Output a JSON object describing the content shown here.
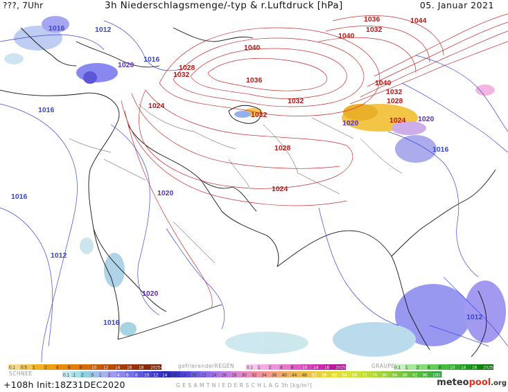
{
  "header": {
    "left": "???, 7Uhr",
    "title": "3h Niederschlagsmenge/-typ & r.Luftdruck [hPa]",
    "date": "05. Januar 2021"
  },
  "isobar_labels": [
    {
      "t": "1016",
      "c": "blue"
    },
    {
      "t": "1012",
      "c": "blue"
    },
    {
      "t": "1016",
      "c": "blue"
    },
    {
      "t": "1020",
      "c": "purple"
    },
    {
      "t": "1016",
      "c": "blue"
    },
    {
      "t": "1028",
      "c": "red"
    },
    {
      "t": "1032",
      "c": "red"
    },
    {
      "t": "1024",
      "c": "red"
    },
    {
      "t": "1040",
      "c": "red"
    },
    {
      "t": "1036",
      "c": "red"
    },
    {
      "t": "1032",
      "c": "red"
    },
    {
      "t": "1032",
      "c": "red"
    },
    {
      "t": "1028",
      "c": "red"
    },
    {
      "t": "1024",
      "c": "red"
    },
    {
      "t": "1036",
      "c": "red"
    },
    {
      "t": "1032",
      "c": "red"
    },
    {
      "t": "1040",
      "c": "red"
    },
    {
      "t": "1044",
      "c": "red"
    },
    {
      "t": "1040",
      "c": "red"
    },
    {
      "t": "1032",
      "c": "red"
    },
    {
      "t": "1028",
      "c": "red"
    },
    {
      "t": "1024",
      "c": "red"
    },
    {
      "t": "1020",
      "c": "purple"
    },
    {
      "t": "1020",
      "c": "purple"
    },
    {
      "t": "1016",
      "c": "blue"
    },
    {
      "t": "1016",
      "c": "blue"
    },
    {
      "t": "1020",
      "c": "purple"
    },
    {
      "t": "1012",
      "c": "blue"
    },
    {
      "t": "1020",
      "c": "purple"
    },
    {
      "t": "1016",
      "c": "blue"
    },
    {
      "t": "1012",
      "c": "blue"
    }
  ],
  "legend": {
    "rain_values": [
      "0.1",
      "0.5",
      "1",
      "2",
      "4",
      "6",
      "8",
      "10",
      "12",
      "14",
      "16",
      "18",
      "2025+"
    ],
    "rain_colors": [
      "#f6d88a",
      "#f4c652",
      "#f1b020",
      "#ee9c10",
      "#e98a0c",
      "#e37a0a",
      "#d66a08",
      "#c85a08",
      "#b84c06",
      "#a83e06",
      "#983204",
      "#8a2804",
      "#7a2004"
    ],
    "snow_label": "SCHNEE",
    "snow_values": [
      "0.1",
      ".1",
      "2",
      ".5",
      "1",
      "2",
      "4",
      "6",
      "8",
      "10",
      "12",
      "14"
    ],
    "snow_colors": [
      "#c6e8ec",
      "#aadde6",
      "#8ed0de",
      "#9fc4ea",
      "#a9b4ee",
      "#9f9cf0",
      "#8a86ec",
      "#7470e6",
      "#5e58dc",
      "#4a44d0",
      "#3a34c2",
      "#2a26b0"
    ],
    "freezing_label": "gefrierenderREGEN",
    "freezing_values": [
      "0.1",
      "1",
      "2",
      "4",
      "8",
      "10",
      "14",
      "16",
      "2025+"
    ],
    "freezing_colors": [
      "#f6c8ec",
      "#f2aee4",
      "#ee94dc",
      "#e878d0",
      "#e05ec4",
      "#d644b8",
      "#ca2cac",
      "#bc1a9e",
      "#ac0c90"
    ],
    "graupel_label": "GRAUPEL",
    "graupel_values": [
      "0.1",
      "1",
      "2",
      "4",
      "8",
      "10",
      "14",
      "16",
      "2025+"
    ],
    "graupel_colors": [
      "#c8f0c0",
      "#a8e69a",
      "#86da78",
      "#66cc58",
      "#48bc3e",
      "#30aa2a",
      "#1c981c",
      "#10860e",
      "#087406"
    ],
    "total_values": [
      "14",
      "18",
      "20",
      "22",
      "24",
      "26",
      "28",
      "30",
      "32",
      "34",
      "36",
      "40",
      "44",
      "48",
      "52",
      "56",
      "60",
      "64",
      "68",
      "72",
      "76",
      "80",
      "84",
      "88",
      "92",
      "96",
      "100"
    ],
    "total_colors": [
      "#3a34c2",
      "#5448d4",
      "#7060e0",
      "#8e6ee6",
      "#aa76e6",
      "#c47ce0",
      "#d886d4",
      "#e68cc0",
      "#ee92a8",
      "#f29a8e",
      "#f2a476",
      "#f0ae62",
      "#eeb854",
      "#ecc24a",
      "#eacc42",
      "#e6d63c",
      "#e2de38",
      "#dae236",
      "#cce036",
      "#bcdc36",
      "#aad636",
      "#96d038",
      "#82c83a",
      "#6ec03c",
      "#5ab83e",
      "#48b040",
      "#36a842"
    ],
    "total_label": "G E S A M T N I E D E R S C H L A G   3h  [kg/m²]"
  },
  "footer": {
    "init": "+108h  Init:18Z31DEC2020",
    "brand_a": "meteo",
    "brand_b": "pool",
    "brand_c": ".org"
  }
}
